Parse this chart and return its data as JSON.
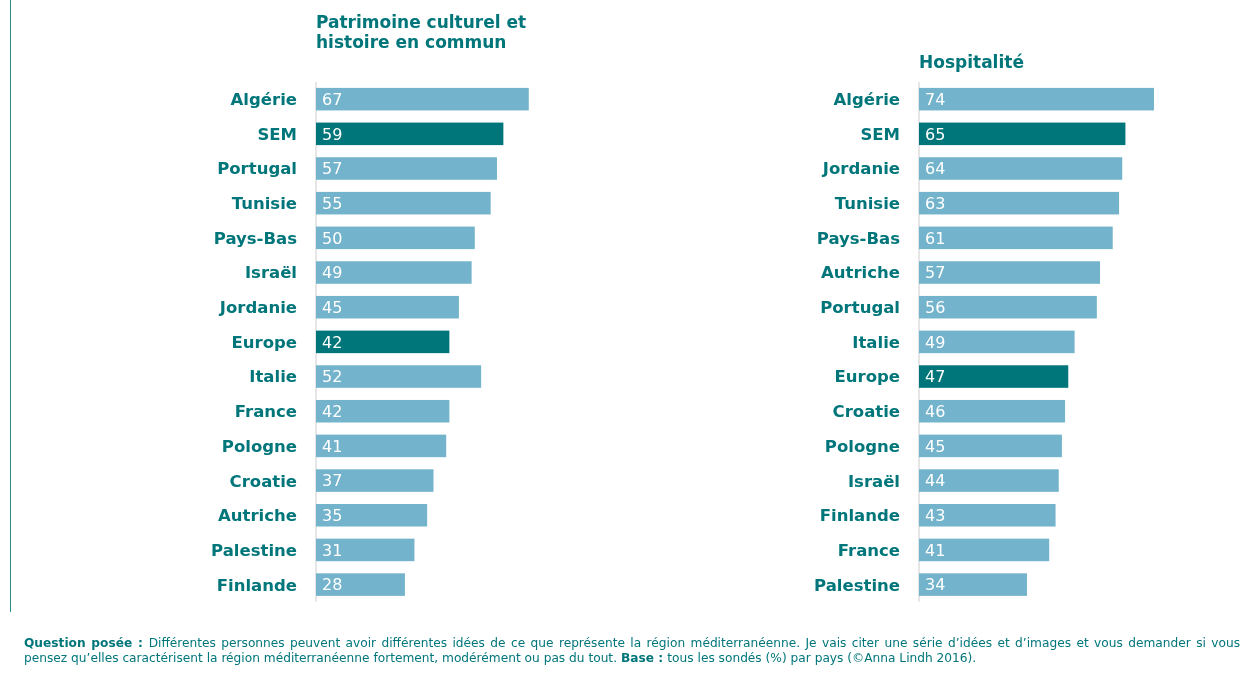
{
  "chart_data": [
    {
      "type": "bar",
      "orientation": "horizontal",
      "title": "Patrimoine culturel et histoire en commun",
      "data_labels": true,
      "categories": [
        "Algérie",
        "SEM",
        "Portugal",
        "Tunisie",
        "Pays-Bas",
        "Israël",
        "Jordanie",
        "Europe",
        "Italie",
        "France",
        "Pologne",
        "Croatie",
        "Autriche",
        "Palestine",
        "Finlande"
      ],
      "values": [
        67,
        59,
        57,
        55,
        50,
        49,
        45,
        42,
        52,
        42,
        41,
        37,
        35,
        31,
        28
      ],
      "colors": [
        "#73b3cb",
        "#00767a",
        "#73b3cb",
        "#73b3cb",
        "#73b3cb",
        "#73b3cb",
        "#73b3cb",
        "#00767a",
        "#73b3cb",
        "#73b3cb",
        "#73b3cb",
        "#73b3cb",
        "#73b3cb",
        "#73b3cb",
        "#73b3cb"
      ],
      "annotations": [
        "Question posée :",
        "Différentes personnes peuvent avoir différentes idées de ce que représente la région méditerranéenne. Je vais citer une série d’idées et d’images et vous demander si vous pensez qu’elles caractérisent la région méditerranéenne fortement, modérément ou pas du tout.",
        "Base :",
        "tous les sondés (%) par pays (©Anna Lindh 2016)."
      ]
    },
    {
      "type": "bar",
      "orientation": "horizontal",
      "title": "Hospitalité",
      "data_labels": true,
      "categories": [
        "Algérie",
        "SEM",
        "Jordanie",
        "Tunisie",
        "Pays-Bas",
        "Autriche",
        "Portugal",
        "Italie",
        "Europe",
        "Croatie",
        "Pologne",
        "Israël",
        "Finlande",
        "France",
        "Palestine"
      ],
      "values": [
        74,
        65,
        64,
        63,
        61,
        57,
        56,
        49,
        47,
        46,
        45,
        44,
        43,
        41,
        34
      ],
      "colors": [
        "#73b3cb",
        "#00767a",
        "#73b3cb",
        "#73b3cb",
        "#73b3cb",
        "#73b3cb",
        "#73b3cb",
        "#73b3cb",
        "#00767a",
        "#73b3cb",
        "#73b3cb",
        "#73b3cb",
        "#73b3cb",
        "#73b3cb",
        "#73b3cb"
      ]
    }
  ]
}
